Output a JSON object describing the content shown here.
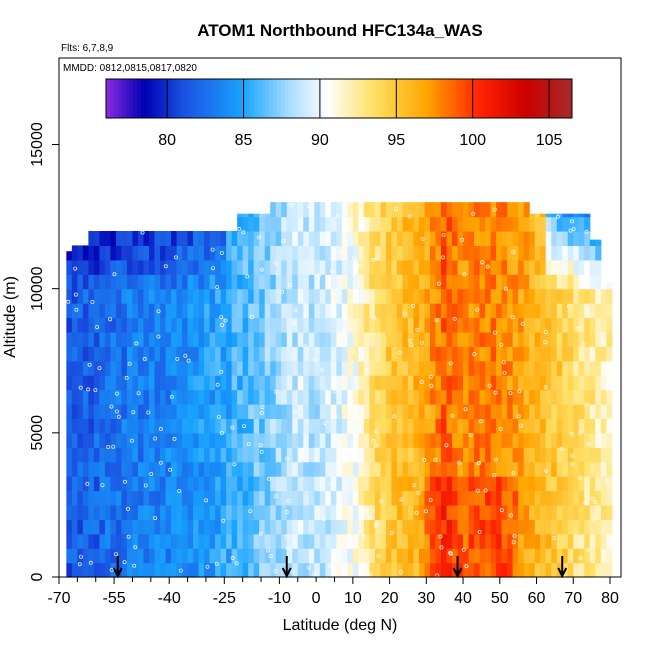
{
  "chart_data": {
    "type": "heatmap",
    "title": "ATOM1 Northbound HFC134a_WAS",
    "flights_label": "Flts: 6,7,8,9",
    "dates_label": "MMDD: 0812,0815,0817,0820",
    "xlabel": "Latitude (deg N)",
    "ylabel": "Altitude (m)",
    "xlim": [
      -70,
      83
    ],
    "ylim": [
      0,
      18000
    ],
    "x_tick_values": [
      -70,
      -55,
      -40,
      -25,
      -10,
      10,
      20,
      30,
      40,
      50,
      60,
      70,
      80
    ],
    "x_tick_labels": [
      "-70",
      "-55",
      "-40",
      "-25",
      "-10",
      "10",
      "20",
      "30",
      "40",
      "50",
      "60",
      "70",
      "80"
    ],
    "x_minor_tick_values": [
      -65,
      -60,
      -50,
      -45,
      -35,
      -30,
      -20,
      -15,
      -5,
      0,
      5
    ],
    "x_minor_tick_labels": [
      "",
      "",
      "",
      "",
      "",
      "",
      "",
      "",
      "",
      "0",
      ""
    ],
    "y_tick_values": [
      0,
      5000,
      10000,
      15000
    ],
    "y_tick_labels": [
      "0",
      "5000",
      "10000",
      "15000"
    ],
    "colorbar": {
      "range": [
        76,
        106.5
      ],
      "tick_values": [
        80,
        85,
        90,
        95,
        100,
        105
      ],
      "tick_labels": [
        "80",
        "85",
        "90",
        "95",
        "100",
        "105"
      ],
      "stops": [
        {
          "v": 76,
          "color": "#8a2be2"
        },
        {
          "v": 78.5,
          "color": "#0000b3"
        },
        {
          "v": 81,
          "color": "#1a4fe0"
        },
        {
          "v": 85,
          "color": "#19a4ff"
        },
        {
          "v": 88,
          "color": "#a8dcff"
        },
        {
          "v": 90.5,
          "color": "#ffffff"
        },
        {
          "v": 93.5,
          "color": "#ffe066"
        },
        {
          "v": 97,
          "color": "#ffa500"
        },
        {
          "v": 100.5,
          "color": "#ff2200"
        },
        {
          "v": 103.5,
          "color": "#cc0000"
        },
        {
          "v": 106.5,
          "color": "#a52a2a"
        }
      ]
    },
    "flight_markers_lat": [
      -54,
      -8,
      38.5,
      67
    ],
    "profile": [
      {
        "lat": -68,
        "v": 81.5
      },
      {
        "lat": -60,
        "v": 82
      },
      {
        "lat": -50,
        "v": 83
      },
      {
        "lat": -40,
        "v": 83.5
      },
      {
        "lat": -30,
        "v": 84.5
      },
      {
        "lat": -20,
        "v": 86
      },
      {
        "lat": -10,
        "v": 88
      },
      {
        "lat": -5,
        "v": 89
      },
      {
        "lat": 0,
        "v": 88.5
      },
      {
        "lat": 5,
        "v": 89.5
      },
      {
        "lat": 10,
        "v": 90.5
      },
      {
        "lat": 15,
        "v": 93
      },
      {
        "lat": 20,
        "v": 95
      },
      {
        "lat": 25,
        "v": 95.5
      },
      {
        "lat": 30,
        "v": 96.5
      },
      {
        "lat": 35,
        "v": 99
      },
      {
        "lat": 40,
        "v": 97.5
      },
      {
        "lat": 45,
        "v": 98
      },
      {
        "lat": 50,
        "v": 98
      },
      {
        "lat": 55,
        "v": 97
      },
      {
        "lat": 60,
        "v": 96
      },
      {
        "lat": 65,
        "v": 95
      },
      {
        "lat": 70,
        "v": 93.5
      },
      {
        "lat": 75,
        "v": 92.5
      },
      {
        "lat": 80,
        "v": 92
      }
    ],
    "coverage": [
      {
        "lat_min": -68,
        "lat_max": -66,
        "alt_max": 11300
      },
      {
        "lat_min": -66,
        "lat_max": -62,
        "alt_max": 11500
      },
      {
        "lat_min": -62,
        "lat_max": -50,
        "alt_max": 12000
      },
      {
        "lat_min": -50,
        "lat_max": -22,
        "alt_max": 12000
      },
      {
        "lat_min": -22,
        "lat_max": -12,
        "alt_max": 12600
      },
      {
        "lat_min": -12,
        "lat_max": 58,
        "alt_max": 13000
      },
      {
        "lat_min": 58,
        "lat_max": 74,
        "alt_max": 12600
      },
      {
        "lat_min": 74,
        "lat_max": 78,
        "alt_max": 11700
      },
      {
        "lat_min": 78,
        "lat_max": 80,
        "alt_max": 10200
      }
    ]
  }
}
